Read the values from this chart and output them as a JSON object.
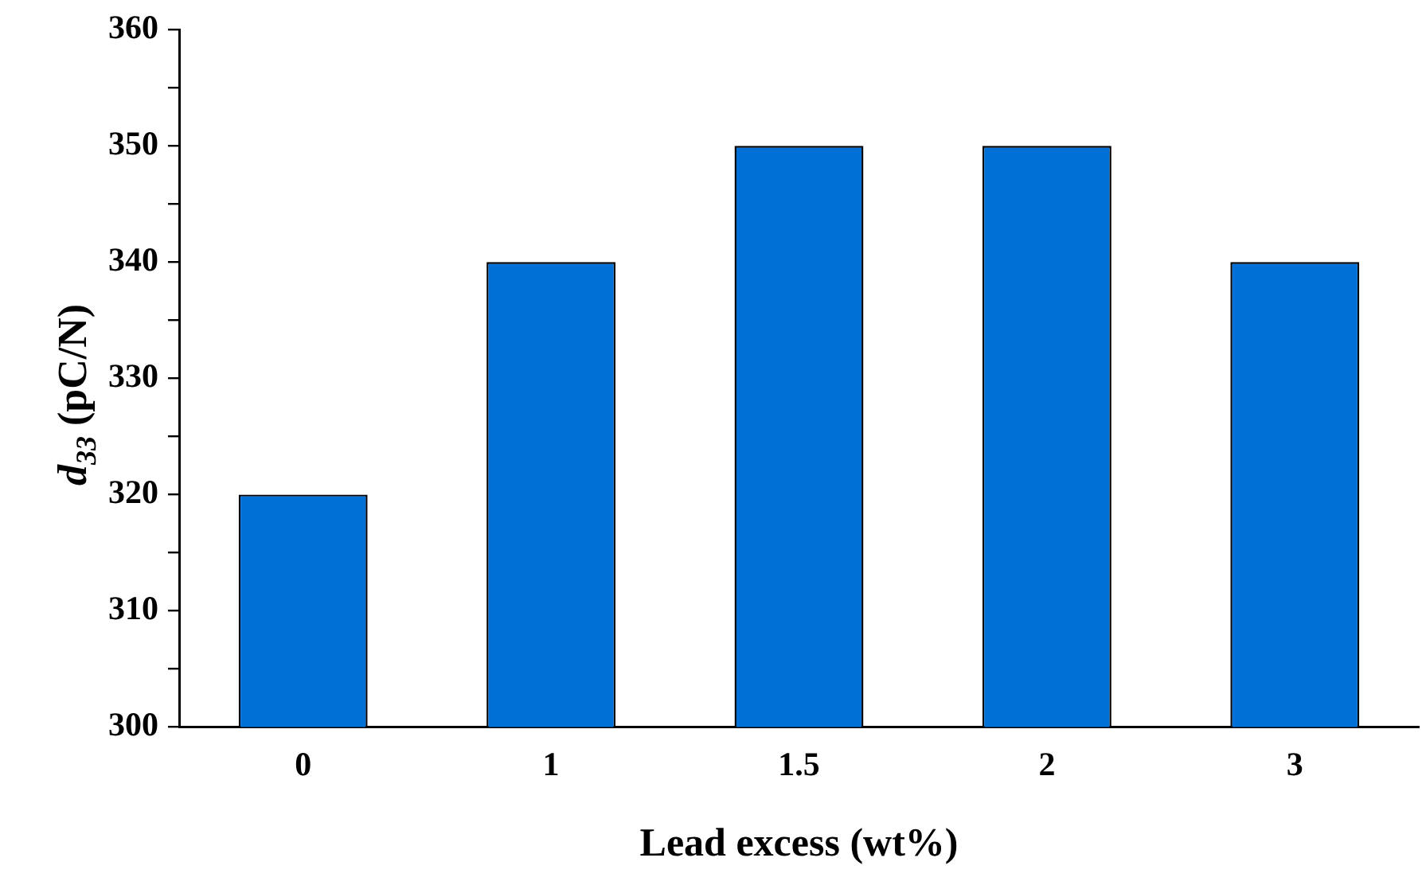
{
  "chart_data": {
    "type": "bar",
    "xlabel": "Lead excess (wt%)",
    "ylabel": "d$_{33}$ (pC/N)",
    "categories": [
      "0",
      "1",
      "1.5",
      "2",
      "3"
    ],
    "values": [
      320,
      340,
      350,
      350,
      340
    ],
    "color": "#0070d6",
    "ylim": [
      300,
      360
    ],
    "yticks": [
      300,
      {
        "value": 305,
        "label": null
      },
      310,
      {
        "value": 315,
        "label": null
      },
      320,
      {
        "value": 325,
        "label": null
      },
      330,
      {
        "value": 335,
        "label": null
      },
      340,
      {
        "value": 345,
        "label": null
      },
      350,
      {
        "value": 355,
        "label": null
      },
      360
    ],
    "grid": false,
    "legend": false
  }
}
